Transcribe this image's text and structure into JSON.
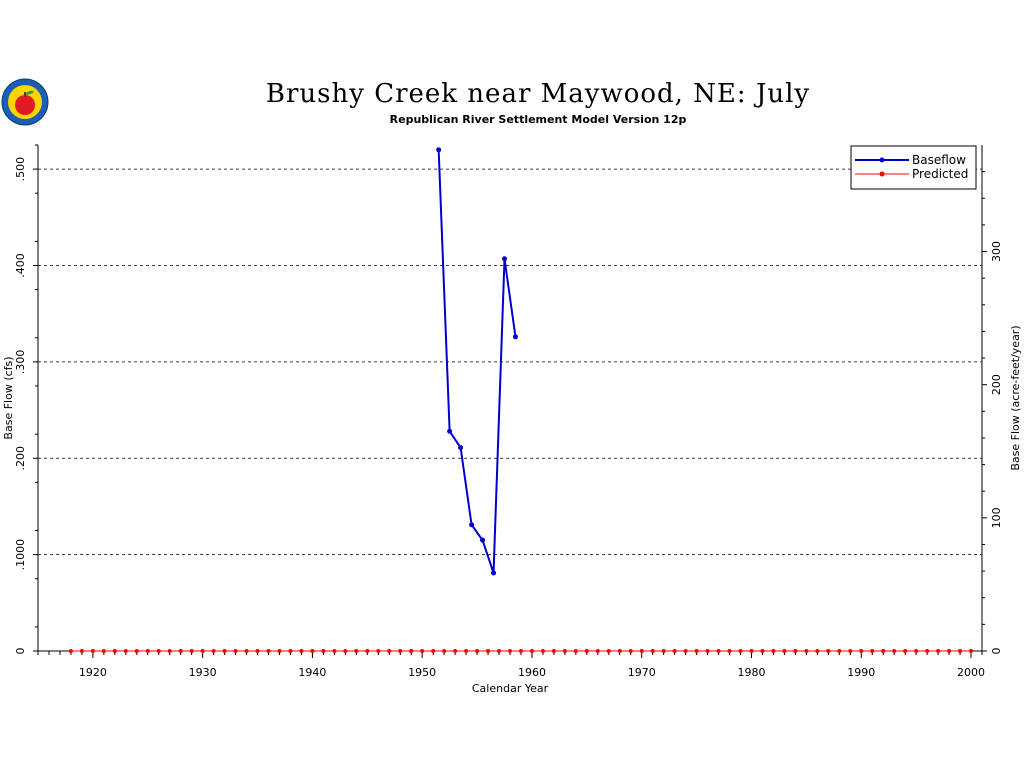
{
  "chart_data": {
    "type": "line",
    "title": "Brushy Creek near Maywood, NE: July",
    "subtitle": "Republican River Settlement Model Version 12p",
    "xlabel": "Calendar Year",
    "ylabel": "Base Flow (cfs)",
    "y2label": "Base Flow (acre-feet/year)",
    "xlim": [
      1915,
      2001
    ],
    "ylim": [
      0,
      0.525
    ],
    "y2lim": [
      0,
      380
    ],
    "x_ticks": [
      1920,
      1930,
      1940,
      1950,
      1960,
      1970,
      1980,
      1990,
      2000
    ],
    "x_tick_labels": [
      "1920",
      "1930",
      "1940",
      "1950",
      "1960",
      "1970",
      "1980",
      "1990",
      "2000"
    ],
    "y_ticks": [
      0,
      0.1,
      0.2,
      0.3,
      0.4,
      0.5
    ],
    "y_tick_labels": [
      "0",
      ".1000",
      ".200",
      ".300",
      ".400",
      ".500"
    ],
    "y2_ticks": [
      0,
      100,
      200,
      300
    ],
    "y2_tick_labels": [
      "0",
      "100",
      "200",
      "300"
    ],
    "grid": "horizontal dashed at y ticks",
    "legend_position": "top-right",
    "series": [
      {
        "name": "Baseflow",
        "color": "#0000cc",
        "x": [
          1951.5,
          1952.5,
          1953.5,
          1954.5,
          1955.5,
          1956.5,
          1957.5,
          1958.5
        ],
        "y": [
          0.52,
          0.228,
          0.211,
          0.131,
          0.115,
          0.081,
          0.407,
          0.326
        ]
      },
      {
        "name": "Predicted",
        "color": "#ff0000",
        "x": [
          1918,
          1919,
          1920,
          1921,
          1922,
          1923,
          1924,
          1925,
          1926,
          1927,
          1928,
          1929,
          1930,
          1931,
          1932,
          1933,
          1934,
          1935,
          1936,
          1937,
          1938,
          1939,
          1940,
          1941,
          1942,
          1943,
          1944,
          1945,
          1946,
          1947,
          1948,
          1949,
          1950,
          1951,
          1952,
          1953,
          1954,
          1955,
          1956,
          1957,
          1958,
          1959,
          1960,
          1961,
          1962,
          1963,
          1964,
          1965,
          1966,
          1967,
          1968,
          1969,
          1970,
          1971,
          1972,
          1973,
          1974,
          1975,
          1976,
          1977,
          1978,
          1979,
          1980,
          1981,
          1982,
          1983,
          1984,
          1985,
          1986,
          1987,
          1988,
          1989,
          1990,
          1991,
          1992,
          1993,
          1994,
          1995,
          1996,
          1997,
          1998,
          1999,
          2000
        ],
        "y": [
          0,
          0,
          0,
          0,
          0,
          0,
          0,
          0,
          0,
          0,
          0,
          0,
          0,
          0,
          0,
          0,
          0,
          0,
          0,
          0,
          0,
          0,
          0,
          0,
          0,
          0,
          0,
          0,
          0,
          0,
          0,
          0,
          0,
          0,
          0,
          0,
          0,
          0,
          0,
          0,
          0,
          0,
          0,
          0,
          0,
          0,
          0,
          0,
          0,
          0,
          0,
          0,
          0,
          0,
          0,
          0,
          0,
          0,
          0,
          0,
          0,
          0,
          0,
          0,
          0,
          0,
          0,
          0,
          0,
          0,
          0,
          0,
          0,
          0,
          0,
          0,
          0,
          0,
          0,
          0,
          0,
          0,
          0
        ]
      }
    ]
  },
  "logo": {
    "name": "apple-logo",
    "colors": [
      "#1a5fb4",
      "#ffd400",
      "#e01b24",
      "#2a9d3a"
    ]
  }
}
